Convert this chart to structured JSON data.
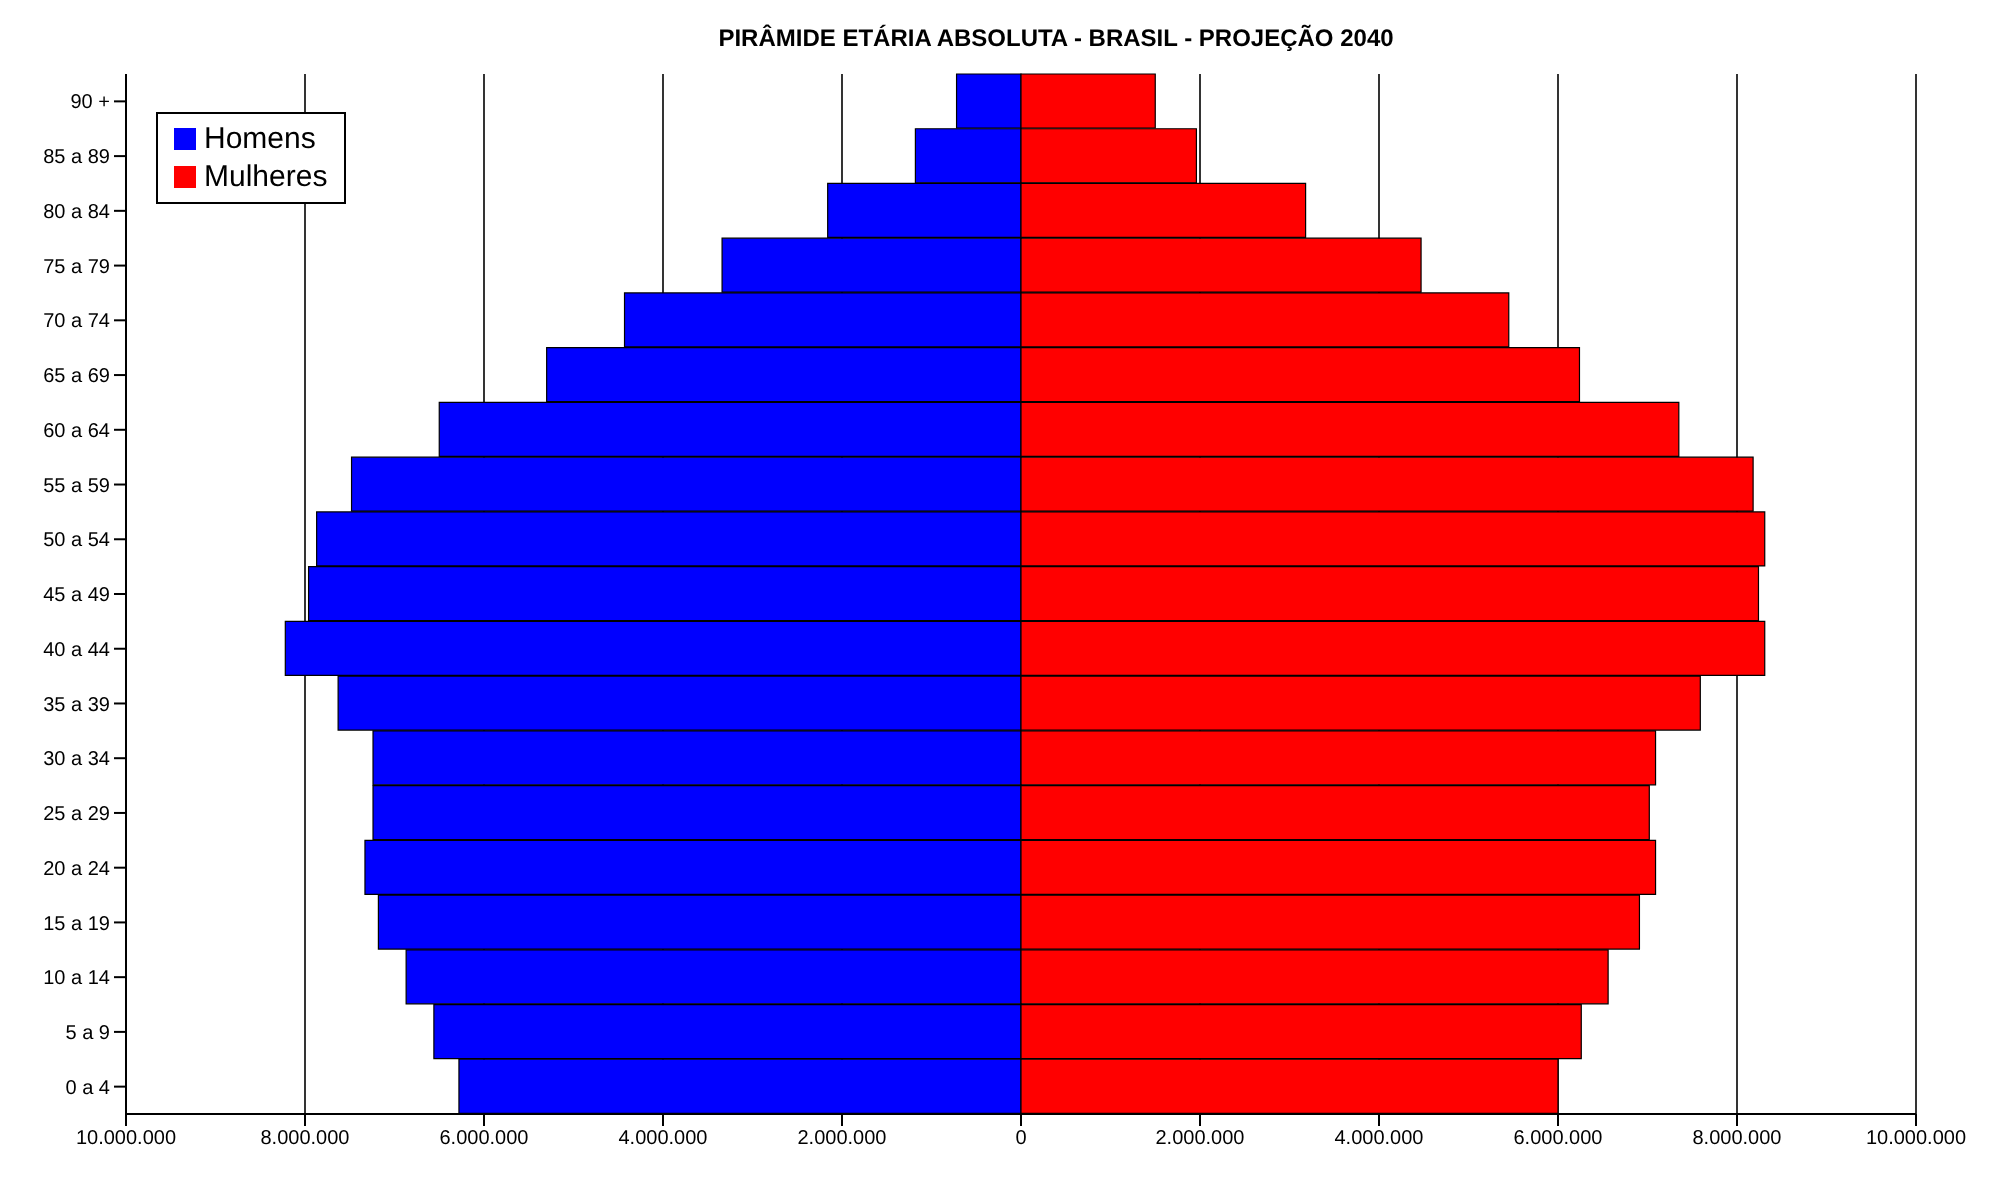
{
  "chart_data": {
    "type": "bar",
    "orientation": "horizontal",
    "stacked": true,
    "title": "PIRÂMIDE ETÁRIA ABSOLUTA - BRASIL - PROJEÇÃO 2040",
    "categories": [
      "90 +",
      "85 a 89",
      "80 a 84",
      "75 a 79",
      "70 a 74",
      "65 a 69",
      "60 a 64",
      "55 a 59",
      "50 a 54",
      "45 a 49",
      "40 a 44",
      "35 a 39",
      "30 a 34",
      "25 a 29",
      "20 a 24",
      "15 a 19",
      "10 a 14",
      "5 a 9",
      "0 a 4"
    ],
    "series": [
      {
        "name": "Homens",
        "color": "#0000ff",
        "values": [
          -720000,
          -1180000,
          -2160000,
          -3340000,
          -4430000,
          -5300000,
          -6500000,
          -7480000,
          -7870000,
          -7960000,
          -8220000,
          -7630000,
          -7240000,
          -7240000,
          -7330000,
          -7180000,
          -6870000,
          -6560000,
          -6280000
        ]
      },
      {
        "name": "Mulheres",
        "color": "#ff0000",
        "values": [
          1500000,
          1960000,
          3180000,
          4470000,
          5450000,
          6240000,
          7350000,
          8180000,
          8310000,
          8240000,
          8310000,
          7590000,
          7090000,
          7020000,
          7090000,
          6910000,
          6560000,
          6260000,
          6000000
        ]
      }
    ],
    "xlim": [
      -10000000,
      10000000
    ],
    "xticks": [
      {
        "value": -10000000,
        "label": "10.000.000"
      },
      {
        "value": -8000000,
        "label": "8.000.000"
      },
      {
        "value": -6000000,
        "label": "6.000.000"
      },
      {
        "value": -4000000,
        "label": "4.000.000"
      },
      {
        "value": -2000000,
        "label": "2.000.000"
      },
      0,
      {
        "value": 2000000,
        "label": "2.000.000"
      },
      {
        "value": 4000000,
        "label": "4.000.000"
      },
      {
        "value": 6000000,
        "label": "6.000.000"
      },
      {
        "value": 8000000,
        "label": "8.000.000"
      },
      {
        "value": 10000000,
        "label": "10.000.000"
      }
    ],
    "grid": "x",
    "legend": "top left"
  }
}
